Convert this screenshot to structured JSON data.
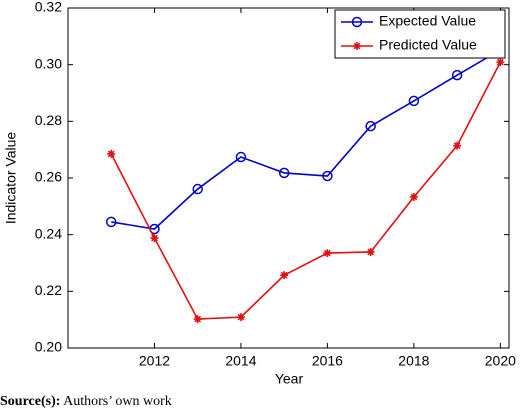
{
  "chart_data": {
    "type": "line",
    "x_label": "Year",
    "y_label": "Indicator Value",
    "x": [
      2011,
      2012,
      2013,
      2014,
      2015,
      2016,
      2017,
      2018,
      2019,
      2020
    ],
    "series": [
      {
        "name": "Expected Value",
        "color": "#0000c8",
        "marker": "circle",
        "values": [
          0.2445,
          0.242,
          0.2561,
          0.2674,
          0.2618,
          0.2607,
          0.2783,
          0.2872,
          0.2963,
          0.3052
        ]
      },
      {
        "name": "Predicted Value",
        "color": "#e01010",
        "marker": "asterisk",
        "values": [
          0.2685,
          0.2388,
          0.2102,
          0.2109,
          0.2257,
          0.2335,
          0.2339,
          0.2533,
          0.2714,
          0.3009
        ]
      }
    ],
    "xlim": [
      2010,
      2020.2
    ],
    "xticks": [
      2012,
      2014,
      2016,
      2018,
      2020
    ],
    "ylim": [
      0.2,
      0.32
    ],
    "yticks": [
      {
        "value": 0.2,
        "label": "0.20"
      },
      {
        "value": 0.22,
        "label": "0.22"
      },
      {
        "value": 0.24,
        "label": "0.24"
      },
      {
        "value": 0.26,
        "label": "0.26"
      },
      {
        "value": 0.28,
        "label": "0.28"
      },
      {
        "value": 0.3,
        "label": "0.30"
      },
      {
        "value": 0.32,
        "label": "0.32"
      }
    ],
    "grid": false,
    "legend": "northeast"
  },
  "caption": {
    "label": "Source(s):",
    "text": "Authors’ own work"
  }
}
